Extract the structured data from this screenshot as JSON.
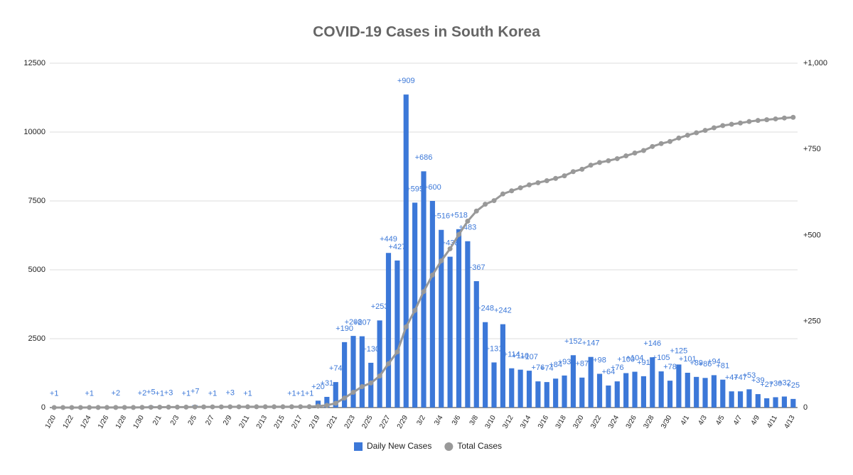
{
  "chart_data": {
    "type": "bar",
    "title": "COVID-19 Cases in South Korea",
    "categories": [
      "1/20",
      null,
      "1/22",
      null,
      "1/24",
      null,
      "1/26",
      null,
      "1/28",
      null,
      "1/30",
      null,
      "2/1",
      null,
      "2/3",
      null,
      "2/5",
      null,
      "2/7",
      null,
      "2/9",
      null,
      "2/11",
      null,
      "2/13",
      null,
      "2/15",
      null,
      "2/17",
      null,
      "2/19",
      null,
      "2/21",
      null,
      "2/23",
      null,
      "2/25",
      null,
      "2/27",
      null,
      "2/29",
      null,
      "3/2",
      null,
      "3/4",
      null,
      "3/6",
      null,
      "3/8",
      null,
      "3/10",
      null,
      "3/12",
      null,
      "3/14",
      null,
      "3/16",
      null,
      "3/18",
      null,
      "3/20",
      null,
      "3/22",
      null,
      "3/24",
      null,
      "3/26",
      null,
      "3/28",
      null,
      "3/30",
      null,
      "4/1",
      null,
      "4/3",
      null,
      "4/5",
      null,
      "4/7",
      null,
      "4/9",
      null,
      "4/11",
      null,
      "4/13"
    ],
    "series": [
      {
        "name": "Daily New Cases",
        "type": "bar",
        "axis": "y2",
        "color": "#3c78d8",
        "values": [
          1,
          0,
          0,
          0,
          1,
          0,
          0,
          2,
          0,
          0,
          2,
          5,
          1,
          3,
          0,
          1,
          7,
          0,
          1,
          0,
          3,
          0,
          1,
          0,
          0,
          0,
          0,
          1,
          1,
          1,
          20,
          31,
          74,
          190,
          208,
          207,
          130,
          253,
          449,
          427,
          909,
          595,
          686,
          600,
          516,
          438,
          518,
          483,
          367,
          248,
          131,
          242,
          114,
          110,
          107,
          76,
          74,
          84,
          93,
          152,
          87,
          147,
          98,
          64,
          76,
          100,
          104,
          91,
          146,
          105,
          78,
          125,
          101,
          89,
          86,
          94,
          81,
          47,
          47,
          53,
          39,
          27,
          30,
          32,
          25
        ],
        "value_labels": [
          "+1",
          null,
          null,
          null,
          "+1",
          null,
          null,
          "+2",
          null,
          null,
          "+2",
          "+5",
          "+1",
          "+3",
          null,
          "+1",
          "+7",
          null,
          "+1",
          null,
          "+3",
          null,
          "+1",
          null,
          null,
          null,
          null,
          "+1",
          "+1",
          "+1",
          "+20",
          "+31",
          "+74",
          "+190",
          "+208",
          "+207",
          "+130",
          "+253",
          "+449",
          "+427",
          "+909",
          "+595",
          "+686",
          "+600",
          "+516",
          "+438",
          "+518",
          "+483",
          "+367",
          "+248",
          "+131",
          "+242",
          "+114",
          "+110",
          "+107",
          "+76",
          "+74",
          "+84",
          "+93",
          "+152",
          "+87",
          "+147",
          "+98",
          "+64",
          "+76",
          "+100",
          "+104",
          "+91",
          "+146",
          "+105",
          "+78",
          "+125",
          "+101",
          "+89",
          "+86",
          "+94",
          "+81",
          "+47",
          "+47",
          "+53",
          "+39",
          "+27",
          "+30",
          "+32",
          "+25"
        ]
      },
      {
        "name": "Total Cases",
        "type": "line",
        "axis": "y",
        "color": "#999999",
        "values": [
          1,
          1,
          1,
          1,
          2,
          2,
          2,
          4,
          4,
          4,
          6,
          11,
          12,
          15,
          15,
          16,
          23,
          23,
          24,
          24,
          27,
          27,
          28,
          28,
          28,
          28,
          28,
          29,
          30,
          31,
          51,
          82,
          156,
          346,
          554,
          761,
          891,
          1144,
          1593,
          2020,
          2929,
          3524,
          4210,
          4810,
          5326,
          5764,
          6282,
          6765,
          7132,
          7380,
          7511,
          7753,
          7867,
          7977,
          8084,
          8160,
          8234,
          8318,
          8411,
          8563,
          8650,
          8797,
          8895,
          8959,
          9035,
          9135,
          9239,
          9330,
          9476,
          9581,
          9659,
          9784,
          9885,
          9974,
          10060,
          10154,
          10235,
          10282,
          10329,
          10382,
          10421,
          10448,
          10478,
          10510,
          10535
        ]
      }
    ],
    "ylim": [
      0,
      12500
    ],
    "yticks": [
      0,
      2500,
      5000,
      7500,
      10000,
      12500
    ],
    "y2lim": [
      0,
      1000
    ],
    "y2ticks": [
      0,
      {
        "value": 250,
        "label": "+250"
      },
      {
        "value": 500,
        "label": "+500"
      },
      {
        "value": 750,
        "label": "+750"
      },
      {
        "value": 1000,
        "label": "+1,000"
      }
    ],
    "grid": true,
    "legend": "bottom"
  }
}
